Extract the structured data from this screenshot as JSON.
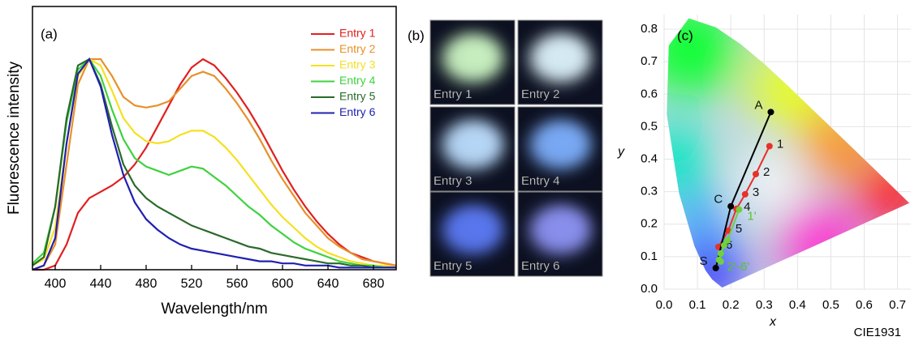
{
  "chart_data": [
    {
      "type": "line",
      "label": "(a)",
      "xlabel": "Wavelength/nm",
      "ylabel": "Fluorescence intensity",
      "xlim": [
        380,
        700
      ],
      "xticks": [
        400,
        440,
        480,
        520,
        560,
        600,
        640,
        680
      ],
      "ylim": [
        0,
        1.25
      ],
      "legend": "upper right",
      "x": [
        380,
        390,
        400,
        410,
        420,
        430,
        440,
        450,
        460,
        470,
        480,
        490,
        500,
        510,
        520,
        530,
        540,
        550,
        560,
        570,
        580,
        590,
        600,
        610,
        620,
        630,
        640,
        650,
        660,
        670,
        680,
        690,
        700
      ],
      "series": [
        {
          "name": "Entry 1",
          "color": "#e02020",
          "values": [
            0,
            0,
            0.02,
            0.12,
            0.27,
            0.34,
            0.37,
            0.4,
            0.44,
            0.5,
            0.58,
            0.68,
            0.78,
            0.88,
            0.96,
            1.0,
            0.97,
            0.91,
            0.84,
            0.76,
            0.67,
            0.57,
            0.47,
            0.38,
            0.3,
            0.23,
            0.17,
            0.12,
            0.08,
            0.06,
            0.04,
            0.03,
            0.02
          ]
        },
        {
          "name": "Entry 2",
          "color": "#e8902a",
          "values": [
            0,
            0.02,
            0.12,
            0.5,
            0.88,
            1.0,
            1.0,
            0.92,
            0.82,
            0.78,
            0.77,
            0.78,
            0.8,
            0.86,
            0.92,
            0.94,
            0.92,
            0.86,
            0.79,
            0.71,
            0.62,
            0.52,
            0.43,
            0.35,
            0.27,
            0.21,
            0.15,
            0.11,
            0.08,
            0.05,
            0.04,
            0.03,
            0.02
          ]
        },
        {
          "name": "Entry 3",
          "color": "#f5e020",
          "values": [
            0.02,
            0.05,
            0.2,
            0.6,
            0.92,
            1.0,
            0.97,
            0.85,
            0.72,
            0.65,
            0.61,
            0.6,
            0.61,
            0.64,
            0.66,
            0.66,
            0.63,
            0.58,
            0.52,
            0.45,
            0.38,
            0.31,
            0.25,
            0.2,
            0.15,
            0.11,
            0.08,
            0.06,
            0.04,
            0.03,
            0.02,
            0.02,
            0.01
          ]
        },
        {
          "name": "Entry 4",
          "color": "#3ed23e",
          "values": [
            0.03,
            0.08,
            0.3,
            0.7,
            0.95,
            1.0,
            0.92,
            0.76,
            0.62,
            0.53,
            0.49,
            0.47,
            0.45,
            0.47,
            0.49,
            0.48,
            0.44,
            0.4,
            0.35,
            0.3,
            0.26,
            0.21,
            0.17,
            0.13,
            0.1,
            0.08,
            0.06,
            0.04,
            0.03,
            0.02,
            0.02,
            0.01,
            0.01
          ]
        },
        {
          "name": "Entry 5",
          "color": "#2a6a2a",
          "values": [
            0.02,
            0.06,
            0.3,
            0.72,
            0.97,
            1.0,
            0.88,
            0.68,
            0.5,
            0.4,
            0.34,
            0.3,
            0.27,
            0.24,
            0.21,
            0.19,
            0.17,
            0.15,
            0.13,
            0.11,
            0.1,
            0.08,
            0.07,
            0.06,
            0.05,
            0.04,
            0.03,
            0.03,
            0.02,
            0.02,
            0.01,
            0.01,
            0.01
          ]
        },
        {
          "name": "Entry 6",
          "color": "#2020b0",
          "values": [
            0,
            0.02,
            0.15,
            0.6,
            0.93,
            1.0,
            0.87,
            0.64,
            0.45,
            0.32,
            0.24,
            0.19,
            0.15,
            0.12,
            0.1,
            0.09,
            0.08,
            0.07,
            0.06,
            0.05,
            0.04,
            0.04,
            0.03,
            0.03,
            0.02,
            0.02,
            0.02,
            0.01,
            0.01,
            0.01,
            0.01,
            0.01,
            0.01
          ]
        }
      ]
    },
    {
      "type": "line",
      "label": "(c)",
      "xlabel": "x",
      "ylabel": "y",
      "caption": "CIE1931",
      "markers": true,
      "grid": true,
      "xlim": [
        0,
        0.74
      ],
      "ylim": [
        0,
        0.845
      ],
      "xticks": [
        {
          "value": 0,
          "label": "0.0"
        },
        0.1,
        0.2,
        0.3,
        0.4,
        0.5,
        0.6,
        0.7
      ],
      "yticks": [
        {
          "value": 0,
          "label": "0.0"
        },
        0.1,
        0.2,
        0.3,
        0.4,
        0.5,
        0.6,
        0.7,
        0.8
      ],
      "series": [
        {
          "color": "#e8312a",
          "x": [
            0.316,
            0.275,
            0.243,
            0.217,
            0.192,
            0.163
          ],
          "values": [
            0.44,
            0.354,
            0.292,
            0.247,
            0.18,
            0.13
          ],
          "point_labels": [
            "1",
            "2",
            "3",
            "4",
            "5",
            "6"
          ]
        },
        {
          "color": "#000000",
          "x": [
            0.155,
            0.2,
            0.32
          ],
          "values": [
            0.065,
            0.255,
            0.545
          ],
          "point_labels": [
            "S",
            "C",
            "A"
          ]
        },
        {
          "color": "#6fd13c",
          "x": [
            0.225,
            0.19,
            0.18,
            0.17,
            0.165,
            0.17
          ],
          "values": [
            0.245,
            0.15,
            0.135,
            0.11,
            0.09,
            0.085
          ],
          "point_labels": [
            "1'",
            null,
            null,
            null,
            "2'-6'",
            null
          ]
        }
      ]
    }
  ],
  "photos": {
    "label": "(b)",
    "tiles": [
      {
        "label": "Entry 1",
        "color": "#c8f0c0"
      },
      {
        "label": "Entry 2",
        "color": "#d8ecf4"
      },
      {
        "label": "Entry 3",
        "color": "#b8d8f8"
      },
      {
        "label": "Entry 4",
        "color": "#7aaaf6"
      },
      {
        "label": "Entry 5",
        "color": "#5a78f0"
      },
      {
        "label": "Entry 6",
        "color": "#8a90ee"
      }
    ]
  }
}
